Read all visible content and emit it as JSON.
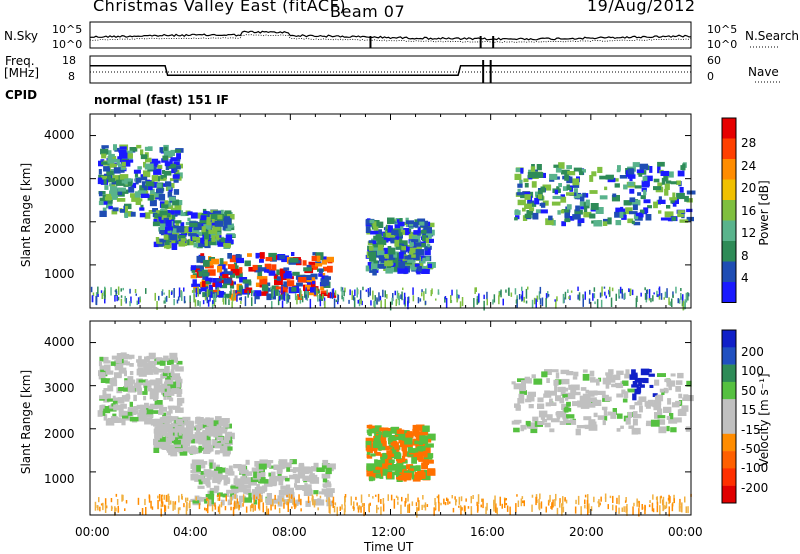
{
  "header": {
    "title": "Christmas Valley East (fitACF)",
    "beam": "Beam 07",
    "date": "19/Aug/2012"
  },
  "side_labels": {
    "nsky": "N.Sky",
    "nsearch": "N.Search",
    "freq_line1": "Freq.",
    "freq_line2": "[MHz]",
    "nave": "Nave",
    "cpid": "CPID",
    "cpid_value": "normal (fast) 151 IF"
  },
  "colors": {
    "power_scale": [
      "#1a1aff",
      "#1f4db3",
      "#2e8b57",
      "#59b38c",
      "#7fbf3f",
      "#f0c000",
      "#ff8c00",
      "#ff4000",
      "#e60000"
    ],
    "velocity_scale": [
      "#1020c8",
      "#2050c0",
      "#2e8b57",
      "#55c040",
      "#c0c0c0",
      "#c0c0c0",
      "#ff8c00",
      "#ff6000",
      "#ff3000",
      "#e00000"
    ]
  },
  "chart_data": [
    {
      "type": "line",
      "name": "noise",
      "ylabels_left": [
        "10^5",
        "10^0"
      ],
      "ylabels_right": [
        "10^5",
        "10^0"
      ],
      "series": [
        {
          "name": "N.Sky",
          "style": "solid"
        },
        {
          "name": "N.Search",
          "style": "dotted"
        }
      ]
    },
    {
      "type": "line",
      "name": "frequency",
      "yticks_left": [
        "18",
        "8"
      ],
      "yticks_right": [
        "60",
        "0"
      ],
      "x_hours": [
        0,
        3,
        3.1,
        14.7,
        14.8,
        16,
        24
      ],
      "freq_mhz": [
        14.4,
        14.4,
        10.9,
        10.9,
        14.4,
        14.4,
        14.4
      ]
    },
    {
      "type": "heatmap",
      "name": "power",
      "ylabel": "Slant Range [km]",
      "yticks": [
        1000,
        2000,
        3000,
        4000
      ],
      "colorbar": {
        "label": "Power [dB]",
        "ticks": [
          "28",
          "24",
          "20",
          "16",
          "12",
          "8",
          "4"
        ]
      },
      "echo_regions": [
        {
          "t_start": 0.3,
          "t_end": 3.5,
          "r_start": 2200,
          "r_end": 3800
        },
        {
          "t_start": 2.5,
          "t_end": 5.5,
          "r_start": 1500,
          "r_end": 2300
        },
        {
          "t_start": 4.0,
          "t_end": 9.5,
          "r_start": 300,
          "r_end": 1300
        },
        {
          "t_start": 11.0,
          "t_end": 13.5,
          "r_start": 900,
          "r_end": 2100
        },
        {
          "t_start": 16.8,
          "t_end": 23.9,
          "r_start": 2000,
          "r_end": 3400
        }
      ]
    },
    {
      "type": "heatmap",
      "name": "velocity",
      "ylabel": "Slant Range [km]",
      "xlabel": "Time UT",
      "xticks": [
        "00:00",
        "04:00",
        "08:00",
        "12:00",
        "16:00",
        "20:00",
        "00:00"
      ],
      "yticks": [
        1000,
        2000,
        3000,
        4000
      ],
      "colorbar": {
        "label": "Velocity [m s⁻¹]",
        "ticks": [
          "200",
          "100",
          "50",
          "15",
          "-15",
          "-50",
          "-100",
          "-200"
        ]
      }
    }
  ]
}
